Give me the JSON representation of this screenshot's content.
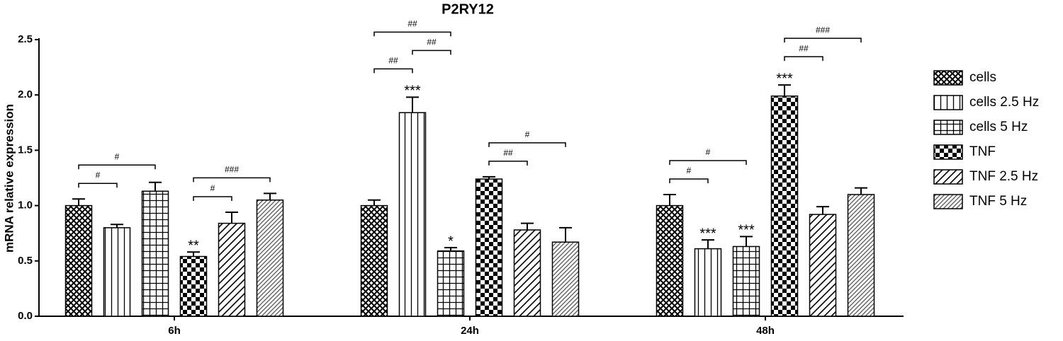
{
  "chart_data": {
    "type": "bar",
    "title": "P2RY12",
    "ylabel": "mRNA relative expression",
    "categories": [
      "6h",
      "24h",
      "48h"
    ],
    "series": [
      {
        "name": "cells",
        "pattern": "crosshatch",
        "color": "#000000",
        "values": [
          1.0,
          1.0,
          1.0
        ],
        "errors": [
          0.06,
          0.05,
          0.1
        ],
        "stars": [
          null,
          null,
          null
        ]
      },
      {
        "name": "cells 2.5 Hz",
        "pattern": "vertical",
        "color": "#000000",
        "values": [
          0.8,
          1.84,
          0.61
        ],
        "errors": [
          0.03,
          0.14,
          0.08
        ],
        "stars": [
          null,
          "***",
          "***"
        ]
      },
      {
        "name": "cells 5 Hz",
        "pattern": "grid",
        "color": "#000000",
        "values": [
          1.13,
          0.59,
          0.63
        ],
        "errors": [
          0.08,
          0.03,
          0.09
        ],
        "stars": [
          null,
          "*",
          "***"
        ]
      },
      {
        "name": "TNF",
        "pattern": "checker",
        "color": "#000000",
        "values": [
          0.54,
          1.24,
          1.99
        ],
        "errors": [
          0.04,
          0.02,
          0.1
        ],
        "stars": [
          "**",
          null,
          "***"
        ]
      },
      {
        "name": "TNF 2.5 Hz",
        "pattern": "diagonal",
        "color": "#000000",
        "values": [
          0.84,
          0.78,
          0.92
        ],
        "errors": [
          0.1,
          0.06,
          0.07
        ],
        "stars": [
          null,
          null,
          null
        ]
      },
      {
        "name": "TNF 5 Hz",
        "pattern": "diagonal-dense",
        "color": "#000000",
        "values": [
          1.05,
          0.67,
          1.1
        ],
        "errors": [
          0.06,
          0.13,
          0.06
        ],
        "stars": [
          null,
          null,
          null
        ]
      }
    ],
    "brackets": [
      {
        "category": "6h",
        "from": "cells",
        "to": "cells 2.5 Hz",
        "label": "#"
      },
      {
        "category": "6h",
        "from": "cells",
        "to": "cells 5 Hz",
        "label": "#"
      },
      {
        "category": "6h",
        "from": "TNF",
        "to": "TNF 2.5 Hz",
        "label": "#"
      },
      {
        "category": "6h",
        "from": "TNF",
        "to": "TNF 5 Hz",
        "label": "###"
      },
      {
        "category": "24h",
        "from": "cells",
        "to": "cells 2.5 Hz",
        "label": "##"
      },
      {
        "category": "24h",
        "from": "cells 2.5 Hz",
        "to": "cells 5 Hz",
        "label": "##"
      },
      {
        "category": "24h",
        "from": "cells",
        "to": "cells 5 Hz",
        "label": "##"
      },
      {
        "category": "24h",
        "from": "TNF",
        "to": "TNF 2.5 Hz",
        "label": "##"
      },
      {
        "category": "24h",
        "from": "TNF",
        "to": "TNF 5 Hz",
        "label": "#"
      },
      {
        "category": "48h",
        "from": "cells",
        "to": "cells 2.5 Hz",
        "label": "#"
      },
      {
        "category": "48h",
        "from": "cells",
        "to": "cells 5 Hz",
        "label": "#"
      },
      {
        "category": "48h",
        "from": "TNF",
        "to": "TNF 2.5 Hz",
        "label": "##"
      },
      {
        "category": "48h",
        "from": "TNF",
        "to": "TNF 5 Hz",
        "label": "###"
      }
    ],
    "ylim": [
      0,
      2.5
    ],
    "yticks": [
      {
        "value": 0,
        "label": "0.0"
      },
      0.5,
      {
        "value": 1,
        "label": "1.0"
      },
      1.5,
      {
        "value": 2,
        "label": "2.0"
      },
      2.5
    ],
    "grid": false,
    "legend": "right"
  }
}
